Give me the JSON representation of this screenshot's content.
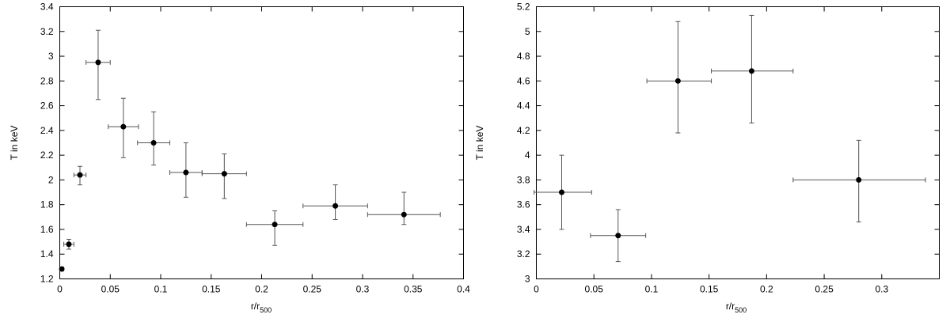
{
  "chart_data": [
    {
      "type": "scatter",
      "title": "",
      "xlabel": "r/r",
      "xlabel_sub": "500",
      "ylabel": "T in keV",
      "xlim": [
        0,
        0.4
      ],
      "ylim": [
        1.2,
        3.4
      ],
      "xticks": [
        0,
        0.05,
        0.1,
        0.15,
        0.2,
        0.25,
        0.3,
        0.35,
        0.4
      ],
      "xtick_labels": [
        "0",
        "0.05",
        "0.1",
        "0.15",
        "0.2",
        "0.25",
        "0.3",
        "0.35",
        "0.4"
      ],
      "yticks": [
        1.2,
        1.4,
        1.6,
        1.8,
        2,
        2.2,
        2.4,
        2.6,
        2.8,
        3,
        3.2,
        3.4
      ],
      "ytick_labels": [
        "1.2",
        "1.4",
        "1.6",
        "1.8",
        "2",
        "2.2",
        "2.4",
        "2.6",
        "2.8",
        "3",
        "3.2",
        "3.4"
      ],
      "grid": false,
      "points": [
        {
          "x": 0.002,
          "y": 1.28,
          "xerr": [
            0.001,
            0.001
          ],
          "yerr": [
            0.015,
            0.015
          ]
        },
        {
          "x": 0.009,
          "y": 1.48,
          "xerr": [
            0.005,
            0.005
          ],
          "yerr": [
            0.04,
            0.04
          ]
        },
        {
          "x": 0.02,
          "y": 2.04,
          "xerr": [
            0.006,
            0.006
          ],
          "yerr": [
            0.08,
            0.07
          ]
        },
        {
          "x": 0.038,
          "y": 2.95,
          "xerr": [
            0.012,
            0.012
          ],
          "yerr": [
            0.3,
            0.26
          ]
        },
        {
          "x": 0.063,
          "y": 2.43,
          "xerr": [
            0.015,
            0.015
          ],
          "yerr": [
            0.25,
            0.23
          ]
        },
        {
          "x": 0.093,
          "y": 2.3,
          "xerr": [
            0.016,
            0.016
          ],
          "yerr": [
            0.18,
            0.25
          ]
        },
        {
          "x": 0.125,
          "y": 2.06,
          "xerr": [
            0.016,
            0.016
          ],
          "yerr": [
            0.2,
            0.24
          ]
        },
        {
          "x": 0.163,
          "y": 2.05,
          "xerr": [
            0.022,
            0.022
          ],
          "yerr": [
            0.2,
            0.16
          ]
        },
        {
          "x": 0.213,
          "y": 1.64,
          "xerr": [
            0.028,
            0.028
          ],
          "yerr": [
            0.17,
            0.11
          ]
        },
        {
          "x": 0.273,
          "y": 1.79,
          "xerr": [
            0.032,
            0.032
          ],
          "yerr": [
            0.11,
            0.17
          ]
        },
        {
          "x": 0.341,
          "y": 1.72,
          "xerr": [
            0.036,
            0.036
          ],
          "yerr": [
            0.08,
            0.18
          ]
        }
      ]
    },
    {
      "type": "scatter",
      "title": "",
      "xlabel": "r/r",
      "xlabel_sub": "500",
      "ylabel": "T in keV",
      "xlim": [
        0,
        0.35
      ],
      "ylim": [
        3,
        5.2
      ],
      "xticks": [
        0,
        0.05,
        0.1,
        0.15,
        0.2,
        0.25,
        0.3
      ],
      "xtick_labels": [
        "0",
        "0.05",
        "0.1",
        "0.15",
        "0.2",
        "0.25",
        "0.3"
      ],
      "yticks": [
        3,
        3.2,
        3.4,
        3.6,
        3.8,
        4,
        4.2,
        4.4,
        4.6,
        4.8,
        5,
        5.2
      ],
      "ytick_labels": [
        "3",
        "3.2",
        "3.4",
        "3.6",
        "3.8",
        "4",
        "4.2",
        "4.4",
        "4.6",
        "4.8",
        "5",
        "5.2"
      ],
      "grid": false,
      "points": [
        {
          "x": 0.022,
          "y": 3.7,
          "xerr": [
            0.024,
            0.026
          ],
          "yerr": [
            0.3,
            0.3
          ]
        },
        {
          "x": 0.071,
          "y": 3.35,
          "xerr": [
            0.024,
            0.024
          ],
          "yerr": [
            0.21,
            0.21
          ]
        },
        {
          "x": 0.123,
          "y": 4.6,
          "xerr": [
            0.027,
            0.029
          ],
          "yerr": [
            0.42,
            0.48
          ]
        },
        {
          "x": 0.187,
          "y": 4.68,
          "xerr": [
            0.035,
            0.036
          ],
          "yerr": [
            0.42,
            0.45
          ]
        },
        {
          "x": 0.28,
          "y": 3.8,
          "xerr": [
            0.057,
            0.058
          ],
          "yerr": [
            0.34,
            0.32
          ]
        }
      ]
    }
  ]
}
